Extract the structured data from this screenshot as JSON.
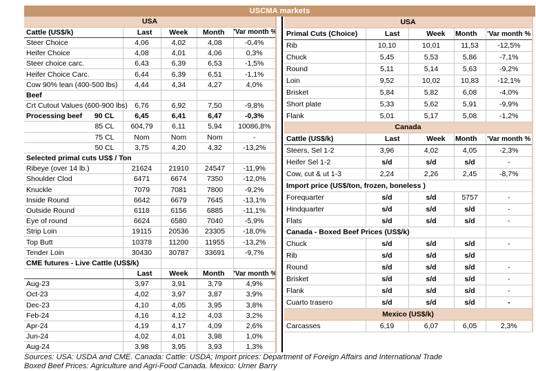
{
  "title": "USCMA markets",
  "colors": {
    "title_bg": "#c6976c",
    "band_bg": "#eed3c0",
    "divider": "#000000",
    "left_table_edge": "#eba99c",
    "right_table_edge": "#f2c4b8"
  },
  "left_table": {
    "rows": [
      {
        "t": "band",
        "l": "USA"
      },
      {
        "t": "head",
        "l": "Cattle (US$/k)",
        "v": [
          "Last",
          "Week",
          "Month",
          "'Var month %"
        ]
      },
      {
        "t": "row",
        "l": "Steer Choice",
        "v": [
          "4,06",
          "4,02",
          "4,08",
          "-0,4%"
        ]
      },
      {
        "t": "row",
        "l": "Heifer Choice",
        "v": [
          "4,08",
          "4,01",
          "4,06",
          "0,3%"
        ]
      },
      {
        "t": "row",
        "l": "Steer choice carc.",
        "v": [
          "6,43",
          "6,39",
          "6,53",
          "-1,5%"
        ]
      },
      {
        "t": "row",
        "l": "Heifer Choice Carc.",
        "v": [
          "6,44",
          "6,39",
          "6,51",
          "-1,1%"
        ]
      },
      {
        "t": "row",
        "l": "Cow 90% lean (400-500 lbs)",
        "v": [
          "4,44",
          "4,34",
          "4,27",
          "4,0%"
        ]
      },
      {
        "t": "sec",
        "l": "Beef"
      },
      {
        "t": "row",
        "l": "Crt Cutout Values (600-900 lbs)",
        "v": [
          "6,76",
          "6,92",
          "7,50",
          "-9,8%"
        ]
      },
      {
        "t": "row",
        "l": "Processing beef",
        "l2": "90 CL",
        "bl": true,
        "bv": true,
        "v": [
          "6,45",
          "6,41",
          "6,47",
          "-0,3%"
        ]
      },
      {
        "t": "row",
        "l": "",
        "l2": "85 CL",
        "v": [
          "604,79",
          "6,11",
          "5,94",
          "10086,8%"
        ]
      },
      {
        "t": "row",
        "l": "",
        "l2": "75 CL",
        "v": [
          "Nom",
          "Nom",
          "Nom",
          "-"
        ]
      },
      {
        "t": "row",
        "l": "",
        "l2": "50 CL",
        "v": [
          "3,75",
          "4,20",
          "4,32",
          "-13,2%"
        ]
      },
      {
        "t": "sec",
        "l": "Selected primal cuts US$ / Ton"
      },
      {
        "t": "row",
        "l": "Ribeye (over 14 lb.)",
        "v": [
          "21624",
          "21910",
          "24547",
          "-11,9%"
        ]
      },
      {
        "t": "row",
        "l": "Shoulder Clod",
        "v": [
          "6471",
          "6674",
          "7350",
          "-12,0%"
        ]
      },
      {
        "t": "row",
        "l": "Knuckle",
        "v": [
          "7079",
          "7081",
          "7800",
          "-9,2%"
        ]
      },
      {
        "t": "row",
        "l": "Inside Round",
        "v": [
          "6642",
          "6679",
          "7645",
          "-13,1%"
        ]
      },
      {
        "t": "row",
        "l": "Outside Round",
        "v": [
          "6118",
          "6156",
          "6885",
          "-11,1%"
        ]
      },
      {
        "t": "row",
        "l": "Eye of round",
        "v": [
          "6624",
          "6580",
          "7040",
          "-5,9%"
        ]
      },
      {
        "t": "row",
        "l": "Strip Loin",
        "v": [
          "19115",
          "20536",
          "23305",
          "-18,0%"
        ]
      },
      {
        "t": "row",
        "l": "Top Butt",
        "v": [
          "10378",
          "11200",
          "11955",
          "-13,2%"
        ]
      },
      {
        "t": "row",
        "l": "Tender Loin",
        "v": [
          "30430",
          "30787",
          "33691",
          "-9,7%"
        ]
      },
      {
        "t": "sec",
        "l": "CME futures - Live Cattle (US$/k)"
      },
      {
        "t": "head",
        "l": "",
        "v": [
          "Last",
          "Week",
          "Month",
          "'Var month %"
        ]
      },
      {
        "t": "row",
        "l": "Aug-23",
        "v": [
          "3,97",
          "3,91",
          "3,79",
          "4,9%"
        ]
      },
      {
        "t": "row",
        "l": "Oct-23",
        "v": [
          "4,02",
          "3,97",
          "3,87",
          "3,9%"
        ]
      },
      {
        "t": "row",
        "l": "Dec-23",
        "v": [
          "4,10",
          "4,05",
          "3,95",
          "3,8%"
        ]
      },
      {
        "t": "row",
        "l": "Feb-24",
        "v": [
          "4,16",
          "4,12",
          "4,03",
          "3,2%"
        ]
      },
      {
        "t": "row",
        "l": "Apr-24",
        "v": [
          "4,19",
          "4,17",
          "4,09",
          "2,6%"
        ]
      },
      {
        "t": "row",
        "l": "Jun-24",
        "v": [
          "4,02",
          "4,01",
          "3,98",
          "1,0%"
        ]
      },
      {
        "t": "row",
        "l": "Aug-24",
        "v": [
          "3,98",
          "3,95",
          "3,93",
          "1,3%"
        ]
      }
    ]
  },
  "right_table": {
    "rows": [
      {
        "t": "band",
        "l": "USA"
      },
      {
        "t": "head",
        "l": "Primal Cuts (Choice)",
        "v": [
          "Last",
          "Week",
          "Month",
          "'Var month %"
        ]
      },
      {
        "t": "row",
        "l": "Rib",
        "v": [
          "10,10",
          "10,01",
          "11,53",
          "-12,5%"
        ]
      },
      {
        "t": "row",
        "l": "Chuck",
        "v": [
          "5,45",
          "5,53",
          "5,86",
          "-7,1%"
        ]
      },
      {
        "t": "row",
        "l": "Round",
        "v": [
          "5,11",
          "5,14",
          "5,63",
          "-9,2%"
        ]
      },
      {
        "t": "row",
        "l": "Loin",
        "v": [
          "9,52",
          "10,02",
          "10,83",
          "-12,1%"
        ]
      },
      {
        "t": "row",
        "l": "Brisket",
        "v": [
          "5,84",
          "5,82",
          "6,08",
          "-4,0%"
        ]
      },
      {
        "t": "row",
        "l": "Short plate",
        "v": [
          "5,33",
          "5,62",
          "5,91",
          "-9,9%"
        ]
      },
      {
        "t": "row",
        "l": "Flank",
        "v": [
          "5,01",
          "5,17",
          "5,08",
          "-1,2%"
        ]
      },
      {
        "t": "band",
        "l": "Canada"
      },
      {
        "t": "head",
        "l": "Cattle (US$/k)",
        "v": [
          "Last",
          "Week",
          "Month",
          "'Var month %"
        ]
      },
      {
        "t": "row",
        "l": "Steers, Sel 1-2",
        "v": [
          "3,96",
          "4,02",
          "4,05",
          "-2,3%"
        ]
      },
      {
        "t": "row",
        "l": "Heifer Sel 1-2",
        "v": [
          "s/d",
          "s/d",
          "s/d",
          "-"
        ]
      },
      {
        "t": "row",
        "l": "Cow, cut & ut 1-3",
        "v": [
          "2,24",
          "2,26",
          "2,45",
          "-8,7%"
        ]
      },
      {
        "t": "sec",
        "l": "Import price (US$/ton, frozen, boneless )",
        "span": true
      },
      {
        "t": "row",
        "l": "Forequarter",
        "v": [
          "s/d",
          "s/d",
          "5757",
          "-"
        ]
      },
      {
        "t": "row",
        "l": "Hindquarter",
        "v": [
          "s/d",
          "s/d",
          "s/d",
          "-"
        ]
      },
      {
        "t": "row",
        "l": "Flats",
        "v": [
          "s/d",
          "s/d",
          "s/d",
          "-"
        ]
      },
      {
        "t": "sec",
        "l": "Canada - Boxed Beef Prices (US$/k)",
        "span": true
      },
      {
        "t": "row",
        "l": "Chuck",
        "v": [
          "s/d",
          "s/d",
          "s/d",
          "-"
        ]
      },
      {
        "t": "row",
        "l": "Rib",
        "v": [
          "s/d",
          "s/d",
          "s/d",
          ""
        ]
      },
      {
        "t": "row",
        "l": "Round",
        "v": [
          "s/d",
          "s/d",
          "s/d",
          "-"
        ]
      },
      {
        "t": "row",
        "l": "Brisket",
        "v": [
          "s/d",
          "s/d",
          "s/d",
          "-"
        ]
      },
      {
        "t": "row",
        "l": "Flank",
        "v": [
          "s/d",
          "s/d",
          "s/d",
          "-"
        ]
      },
      {
        "t": "row",
        "l": "Cuarto trasero",
        "bv": true,
        "v": [
          "s/d",
          "s/d",
          "s/d",
          "-"
        ]
      },
      {
        "t": "band",
        "l": "Mexico (US$/k)"
      },
      {
        "t": "row",
        "l": "Carcasses",
        "v": [
          "6,19",
          "6,07",
          "6,05",
          "2,3%"
        ]
      }
    ]
  },
  "footer": {
    "line1": "Sources: USA: USDA and CME. Canada: Cattle: USDA; Import prices: Department of Foreign Affairs and International Trade",
    "line2": "Boxed Beef Prices: Agriculture and Agri-Food Canada. Mexico: Urner Barry"
  }
}
